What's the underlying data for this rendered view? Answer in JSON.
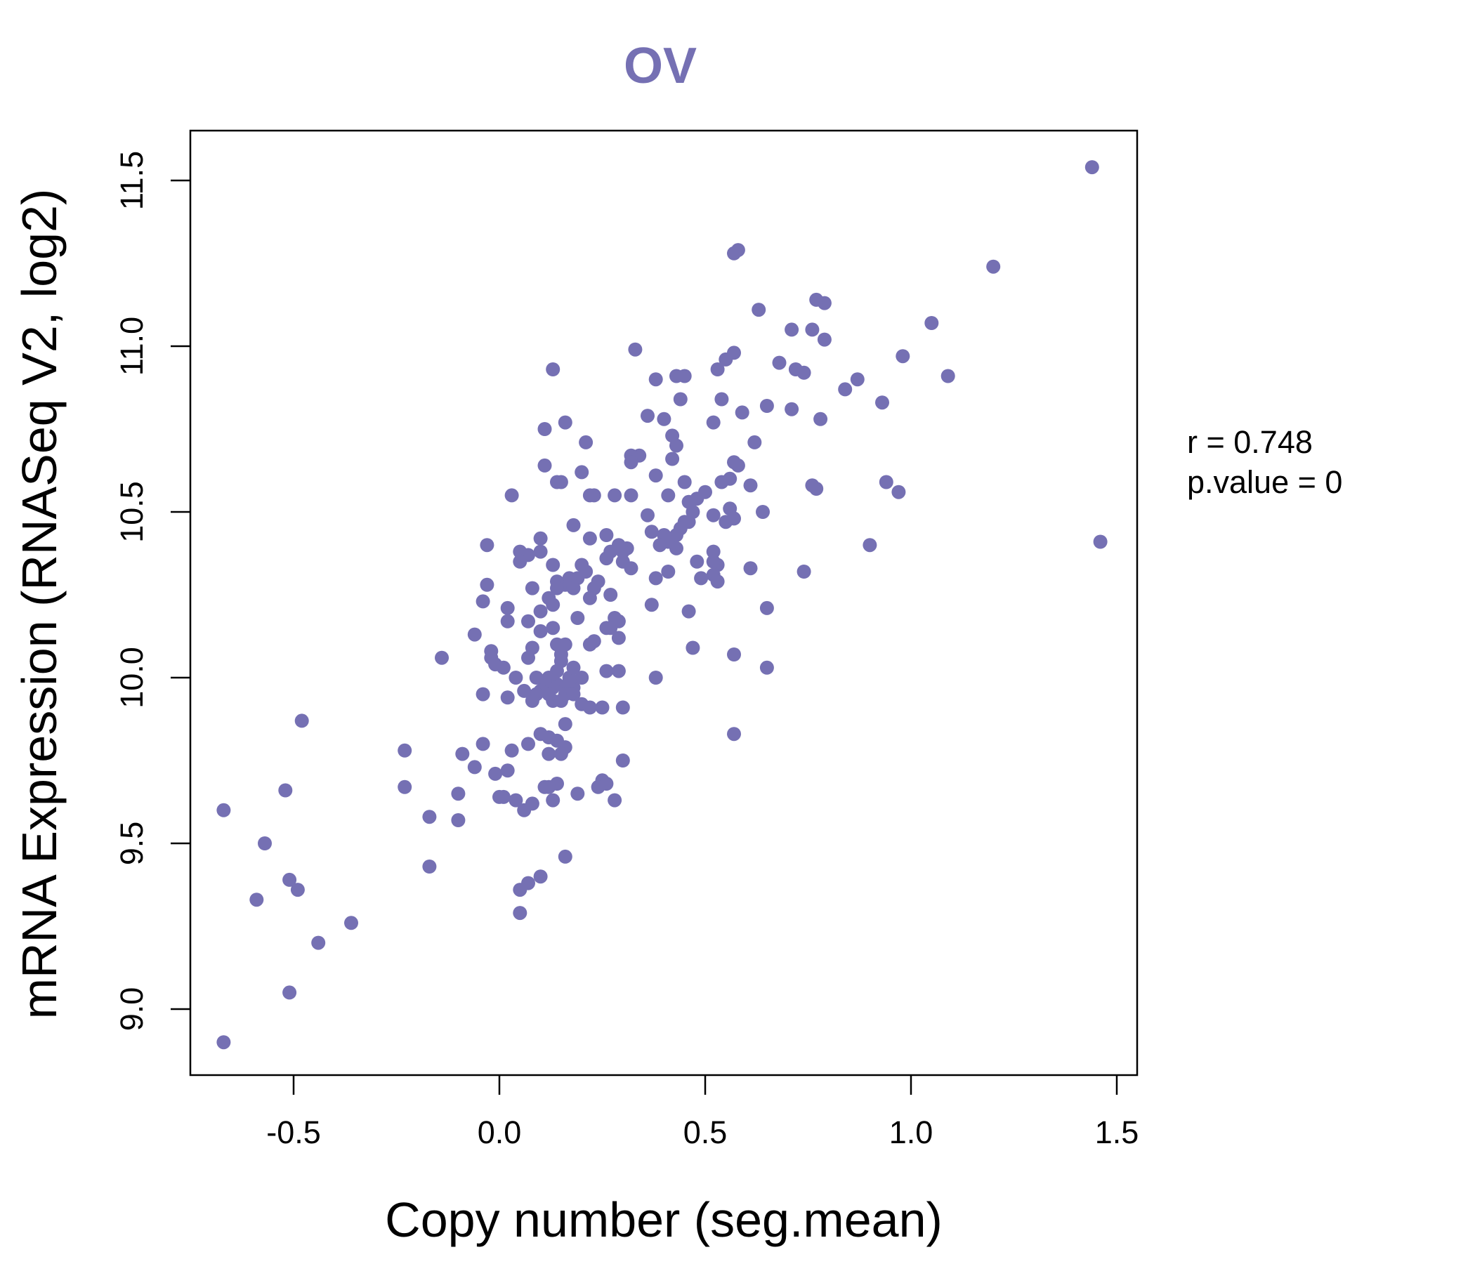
{
  "colors": {
    "point": "#7570b3",
    "title": "#7570b3",
    "axis": "#000000"
  },
  "chart_data": {
    "type": "scatter",
    "title": "OV",
    "xlabel": "Copy number (seg.mean)",
    "ylabel": "mRNA Expression (RNASeq V2, log2)",
    "xlim": [
      -0.75,
      1.55
    ],
    "ylim": [
      8.8,
      11.65
    ],
    "x_ticks": [
      -0.5,
      0.0,
      0.5,
      1.0,
      1.5
    ],
    "x_tick_labels": [
      "-0.5",
      "0.0",
      "0.5",
      "1.0",
      "1.5"
    ],
    "y_ticks": [
      9.0,
      9.5,
      10.0,
      10.5,
      11.0,
      11.5
    ],
    "y_tick_labels": [
      "9.0",
      "9.5",
      "10.0",
      "10.5",
      "11.0",
      "11.5"
    ],
    "stats": {
      "r_label": "r = 0.748",
      "p_label": "p.value = 0"
    },
    "points": [
      [
        1.44,
        11.54
      ],
      [
        1.46,
        10.41
      ],
      [
        1.2,
        11.24
      ],
      [
        1.09,
        10.91
      ],
      [
        1.05,
        11.07
      ],
      [
        0.98,
        10.97
      ],
      [
        0.97,
        10.56
      ],
      [
        0.94,
        10.59
      ],
      [
        0.93,
        10.83
      ],
      [
        0.9,
        10.4
      ],
      [
        0.87,
        10.9
      ],
      [
        0.84,
        10.87
      ],
      [
        0.79,
        11.02
      ],
      [
        0.79,
        11.13
      ],
      [
        0.77,
        11.14
      ],
      [
        0.78,
        10.78
      ],
      [
        0.76,
        11.05
      ],
      [
        0.77,
        10.57
      ],
      [
        0.76,
        10.58
      ],
      [
        0.74,
        10.92
      ],
      [
        0.72,
        10.93
      ],
      [
        0.71,
        11.05
      ],
      [
        0.71,
        10.81
      ],
      [
        0.74,
        10.32
      ],
      [
        0.68,
        10.95
      ],
      [
        0.65,
        10.82
      ],
      [
        0.63,
        11.11
      ],
      [
        0.62,
        10.71
      ],
      [
        0.64,
        10.5
      ],
      [
        0.61,
        10.58
      ],
      [
        0.61,
        10.33
      ],
      [
        0.65,
        10.21
      ],
      [
        0.65,
        10.03
      ],
      [
        0.57,
        11.28
      ],
      [
        0.58,
        11.29
      ],
      [
        0.57,
        10.98
      ],
      [
        0.59,
        10.8
      ],
      [
        0.55,
        10.96
      ],
      [
        0.53,
        10.93
      ],
      [
        0.54,
        10.84
      ],
      [
        0.52,
        10.77
      ],
      [
        0.57,
        10.65
      ],
      [
        0.58,
        10.64
      ],
      [
        0.56,
        10.6
      ],
      [
        0.54,
        10.59
      ],
      [
        0.5,
        10.56
      ],
      [
        0.56,
        10.51
      ],
      [
        0.55,
        10.47
      ],
      [
        0.57,
        10.48
      ],
      [
        0.52,
        10.49
      ],
      [
        0.52,
        10.38
      ],
      [
        0.53,
        10.34
      ],
      [
        0.52,
        10.35
      ],
      [
        0.52,
        10.31
      ],
      [
        0.53,
        10.29
      ],
      [
        0.48,
        10.35
      ],
      [
        0.49,
        10.3
      ],
      [
        0.57,
        10.07
      ],
      [
        0.57,
        9.83
      ],
      [
        0.47,
        10.09
      ],
      [
        0.46,
        10.2
      ],
      [
        0.45,
        10.91
      ],
      [
        0.43,
        10.91
      ],
      [
        0.44,
        10.84
      ],
      [
        0.42,
        10.73
      ],
      [
        0.43,
        10.7
      ],
      [
        0.42,
        10.66
      ],
      [
        0.45,
        10.59
      ],
      [
        0.41,
        10.55
      ],
      [
        0.46,
        10.53
      ],
      [
        0.48,
        10.54
      ],
      [
        0.47,
        10.5
      ],
      [
        0.46,
        10.47
      ],
      [
        0.45,
        10.47
      ],
      [
        0.44,
        10.45
      ],
      [
        0.43,
        10.43
      ],
      [
        0.4,
        10.43
      ],
      [
        0.41,
        10.41
      ],
      [
        0.39,
        10.4
      ],
      [
        0.43,
        10.39
      ],
      [
        0.41,
        10.32
      ],
      [
        0.38,
        10.3
      ],
      [
        0.37,
        10.22
      ],
      [
        0.38,
        10.0
      ],
      [
        0.38,
        10.9
      ],
      [
        0.36,
        10.79
      ],
      [
        0.4,
        10.78
      ],
      [
        0.38,
        10.61
      ],
      [
        0.33,
        10.99
      ],
      [
        0.34,
        10.67
      ],
      [
        0.32,
        10.67
      ],
      [
        0.32,
        10.65
      ],
      [
        0.32,
        10.55
      ],
      [
        0.36,
        10.49
      ],
      [
        0.37,
        10.44
      ],
      [
        0.31,
        10.39
      ],
      [
        0.3,
        10.38
      ],
      [
        0.29,
        10.4
      ],
      [
        0.27,
        10.38
      ],
      [
        0.3,
        10.35
      ],
      [
        0.32,
        10.33
      ],
      [
        0.26,
        10.36
      ],
      [
        0.28,
        10.55
      ],
      [
        0.23,
        10.55
      ],
      [
        0.22,
        10.55
      ],
      [
        0.26,
        10.43
      ],
      [
        0.21,
        10.71
      ],
      [
        0.2,
        10.62
      ],
      [
        0.16,
        10.77
      ],
      [
        0.15,
        10.59
      ],
      [
        0.14,
        10.59
      ],
      [
        0.11,
        10.75
      ],
      [
        0.11,
        10.64
      ],
      [
        0.13,
        10.93
      ],
      [
        0.03,
        10.55
      ],
      [
        -0.03,
        10.4
      ],
      [
        0.05,
        10.38
      ],
      [
        0.07,
        10.37
      ],
      [
        0.1,
        10.38
      ],
      [
        0.05,
        10.35
      ],
      [
        0.1,
        10.42
      ],
      [
        0.13,
        10.34
      ],
      [
        0.18,
        10.46
      ],
      [
        0.22,
        10.42
      ],
      [
        0.2,
        10.34
      ],
      [
        0.21,
        10.32
      ],
      [
        0.19,
        10.3
      ],
      [
        0.17,
        10.3
      ],
      [
        0.16,
        10.28
      ],
      [
        0.18,
        10.27
      ],
      [
        0.14,
        10.29
      ],
      [
        0.24,
        10.29
      ],
      [
        0.23,
        10.27
      ],
      [
        0.22,
        10.24
      ],
      [
        0.27,
        10.25
      ],
      [
        0.14,
        10.27
      ],
      [
        0.13,
        10.22
      ],
      [
        0.08,
        10.27
      ],
      [
        0.12,
        10.24
      ],
      [
        0.1,
        10.2
      ],
      [
        0.07,
        10.17
      ],
      [
        0.02,
        10.21
      ],
      [
        0.02,
        10.17
      ],
      [
        -0.03,
        10.28
      ],
      [
        -0.04,
        10.23
      ],
      [
        -0.06,
        10.13
      ],
      [
        -0.02,
        10.08
      ],
      [
        -0.02,
        10.06
      ],
      [
        -0.01,
        10.04
      ],
      [
        0.01,
        10.03
      ],
      [
        0.07,
        10.06
      ],
      [
        0.08,
        10.09
      ],
      [
        0.1,
        10.14
      ],
      [
        0.13,
        10.15
      ],
      [
        0.14,
        10.1
      ],
      [
        0.15,
        10.07
      ],
      [
        0.16,
        10.1
      ],
      [
        0.15,
        10.05
      ],
      [
        0.14,
        10.02
      ],
      [
        0.18,
        10.03
      ],
      [
        0.17,
        10.0
      ],
      [
        0.14,
        9.98
      ],
      [
        0.16,
        9.97
      ],
      [
        0.18,
        9.97
      ],
      [
        0.12,
        10.0
      ],
      [
        0.13,
        9.97
      ],
      [
        0.11,
        9.99
      ],
      [
        0.1,
        9.96
      ],
      [
        0.09,
        9.95
      ],
      [
        0.08,
        9.93
      ],
      [
        0.06,
        9.96
      ],
      [
        0.04,
        10.0
      ],
      [
        0.02,
        9.94
      ],
      [
        -0.04,
        9.95
      ],
      [
        0.13,
        9.93
      ],
      [
        0.12,
        9.95
      ],
      [
        0.15,
        9.93
      ],
      [
        0.16,
        9.95
      ],
      [
        0.18,
        9.95
      ],
      [
        0.2,
        9.92
      ],
      [
        0.22,
        9.91
      ],
      [
        0.25,
        9.91
      ],
      [
        0.3,
        9.91
      ],
      [
        0.16,
        9.86
      ],
      [
        0.1,
        9.83
      ],
      [
        0.12,
        9.82
      ],
      [
        0.14,
        9.81
      ],
      [
        0.16,
        9.79
      ],
      [
        0.15,
        9.77
      ],
      [
        0.12,
        9.77
      ],
      [
        0.07,
        9.8
      ],
      [
        0.03,
        9.78
      ],
      [
        -0.04,
        9.8
      ],
      [
        -0.09,
        9.77
      ],
      [
        -0.06,
        9.73
      ],
      [
        -0.01,
        9.71
      ],
      [
        0.02,
        9.72
      ],
      [
        0.11,
        9.67
      ],
      [
        0.14,
        9.68
      ],
      [
        0.12,
        9.67
      ],
      [
        0.25,
        9.69
      ],
      [
        0.26,
        9.68
      ],
      [
        0.24,
        9.67
      ],
      [
        0.3,
        9.75
      ],
      [
        0.19,
        9.65
      ],
      [
        0.13,
        9.63
      ],
      [
        0.08,
        9.62
      ],
      [
        0.04,
        9.63
      ],
      [
        0.01,
        9.64
      ],
      [
        0.0,
        9.64
      ],
      [
        -0.1,
        9.65
      ],
      [
        0.06,
        9.6
      ],
      [
        0.28,
        9.63
      ],
      [
        0.29,
        10.17
      ],
      [
        0.28,
        10.18
      ],
      [
        0.27,
        10.15
      ],
      [
        0.29,
        10.12
      ],
      [
        0.26,
        10.15
      ],
      [
        0.23,
        10.11
      ],
      [
        0.26,
        10.02
      ],
      [
        0.29,
        10.02
      ],
      [
        0.16,
        9.46
      ],
      [
        0.1,
        9.4
      ],
      [
        0.07,
        9.38
      ],
      [
        0.05,
        9.36
      ],
      [
        0.05,
        9.29
      ],
      [
        -0.1,
        9.57
      ],
      [
        -0.17,
        9.58
      ],
      [
        -0.17,
        9.43
      ],
      [
        -0.23,
        9.67
      ],
      [
        -0.23,
        9.78
      ],
      [
        -0.14,
        10.06
      ],
      [
        -0.48,
        9.87
      ],
      [
        -0.52,
        9.66
      ],
      [
        -0.57,
        9.5
      ],
      [
        -0.67,
        9.6
      ],
      [
        -0.59,
        9.33
      ],
      [
        -0.51,
        9.39
      ],
      [
        -0.49,
        9.36
      ],
      [
        -0.36,
        9.26
      ],
      [
        -0.44,
        9.2
      ],
      [
        -0.51,
        9.05
      ],
      [
        -0.67,
        8.9
      ],
      [
        0.19,
        10.18
      ],
      [
        0.2,
        10.0
      ],
      [
        0.22,
        10.1
      ],
      [
        0.09,
        10.0
      ],
      [
        0.17,
        9.99
      ]
    ]
  }
}
